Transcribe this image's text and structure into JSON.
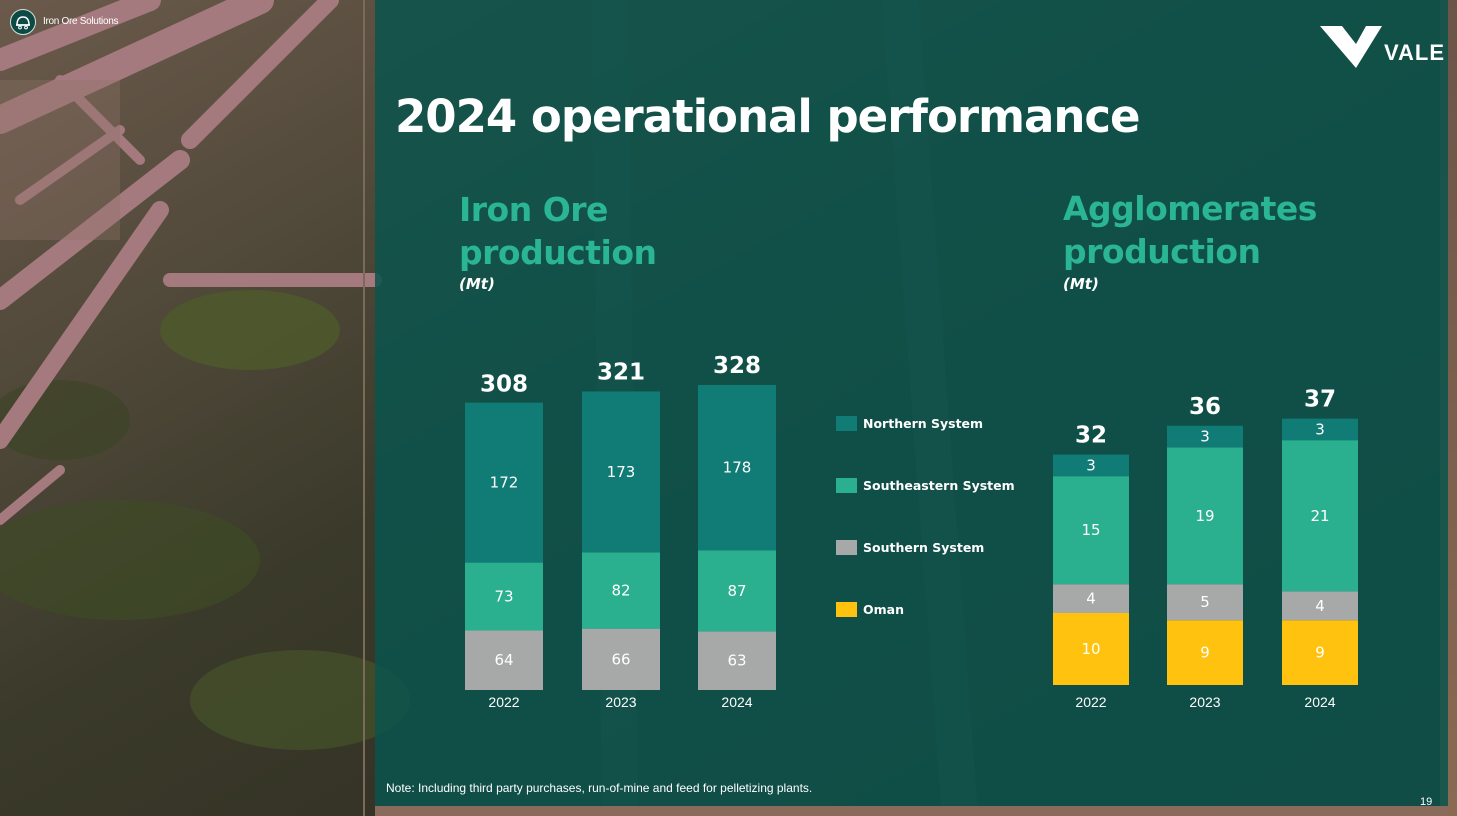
{
  "header": {
    "section_label": "Iron Ore Solutions",
    "logo_text": "VALE"
  },
  "page": {
    "title": "2024 operational performance",
    "note": "Note: Including third party purchases, run-of-mine and feed for pelletizing plants.",
    "page_number": "19"
  },
  "colors": {
    "northern": "#107c75",
    "southeastern": "#2bb08f",
    "southern": "#a7a8a8",
    "oman": "#ffc20e",
    "accent": "#2ab595"
  },
  "legend": [
    {
      "key": "northern",
      "label": "Northern System"
    },
    {
      "key": "southeastern",
      "label": "Southeastern System"
    },
    {
      "key": "southern",
      "label": "Southern System"
    },
    {
      "key": "oman",
      "label": "Oman"
    }
  ],
  "chart_data": [
    {
      "type": "bar",
      "stacked": true,
      "title_line1": "Iron Ore",
      "title_line2": "production",
      "unit": "(Mt)",
      "categories": [
        "2022",
        "2023",
        "2024"
      ],
      "totals": [
        308,
        321,
        328
      ],
      "series": [
        {
          "name": "Southern System",
          "key": "southern",
          "values": [
            64,
            66,
            63
          ]
        },
        {
          "name": "Southeastern System",
          "key": "southeastern",
          "values": [
            73,
            82,
            87
          ]
        },
        {
          "name": "Northern System",
          "key": "northern",
          "values": [
            172,
            173,
            178
          ]
        }
      ]
    },
    {
      "type": "bar",
      "stacked": true,
      "title_line1": "Agglomerates",
      "title_line2": "production",
      "unit": "(Mt)",
      "categories": [
        "2022",
        "2023",
        "2024"
      ],
      "totals": [
        32,
        36,
        37
      ],
      "series": [
        {
          "name": "Oman",
          "key": "oman",
          "values": [
            10,
            9,
            9
          ]
        },
        {
          "name": "Southern System",
          "key": "southern",
          "values": [
            4,
            5,
            4
          ]
        },
        {
          "name": "Southeastern System",
          "key": "southeastern",
          "values": [
            15,
            19,
            21
          ]
        },
        {
          "name": "Northern System",
          "key": "northern",
          "values": [
            3,
            3,
            3
          ]
        }
      ]
    }
  ]
}
